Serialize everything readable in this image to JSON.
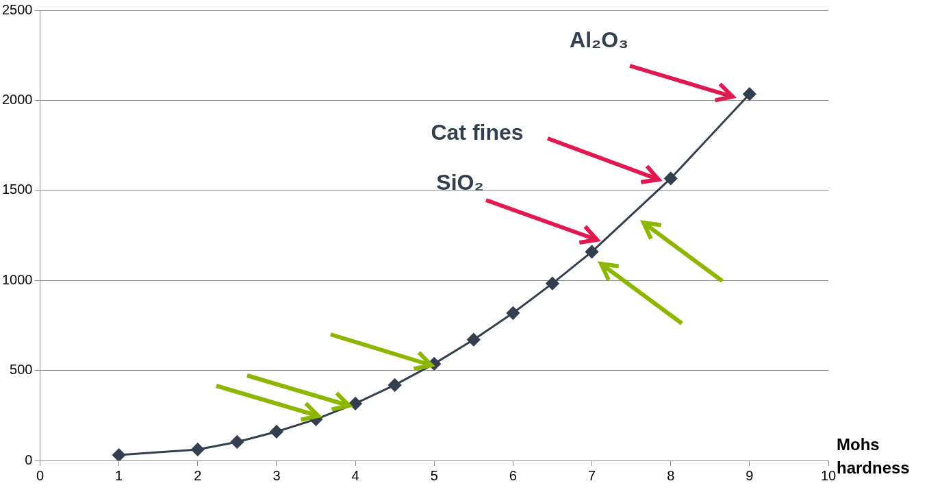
{
  "chart_data": {
    "type": "line",
    "xlabel": "Mohs hardness",
    "x": [
      1,
      2,
      2.5,
      3,
      3.5,
      4,
      4.5,
      5,
      5.5,
      6,
      6.5,
      7,
      8,
      9
    ],
    "series": [
      {
        "color": "#333f4f",
        "values": [
          30,
          61,
          103,
          160,
          229,
          316,
          419,
          537,
          671,
          819,
          983,
          1159,
          1566,
          2035
        ]
      }
    ],
    "xlim": [
      0,
      10
    ],
    "xticks": [
      0,
      1,
      2,
      3,
      4,
      5,
      6,
      7,
      8,
      9,
      10
    ],
    "ylim": [
      0,
      2500
    ],
    "yticks": [
      0,
      500,
      1000,
      1500,
      2000,
      2500
    ],
    "grid": "y",
    "legend": false,
    "marker": "diamond",
    "line_style": "solid",
    "annotations": [
      "Al₂O₃",
      "Cat fines",
      "SiO₂"
    ]
  }
}
